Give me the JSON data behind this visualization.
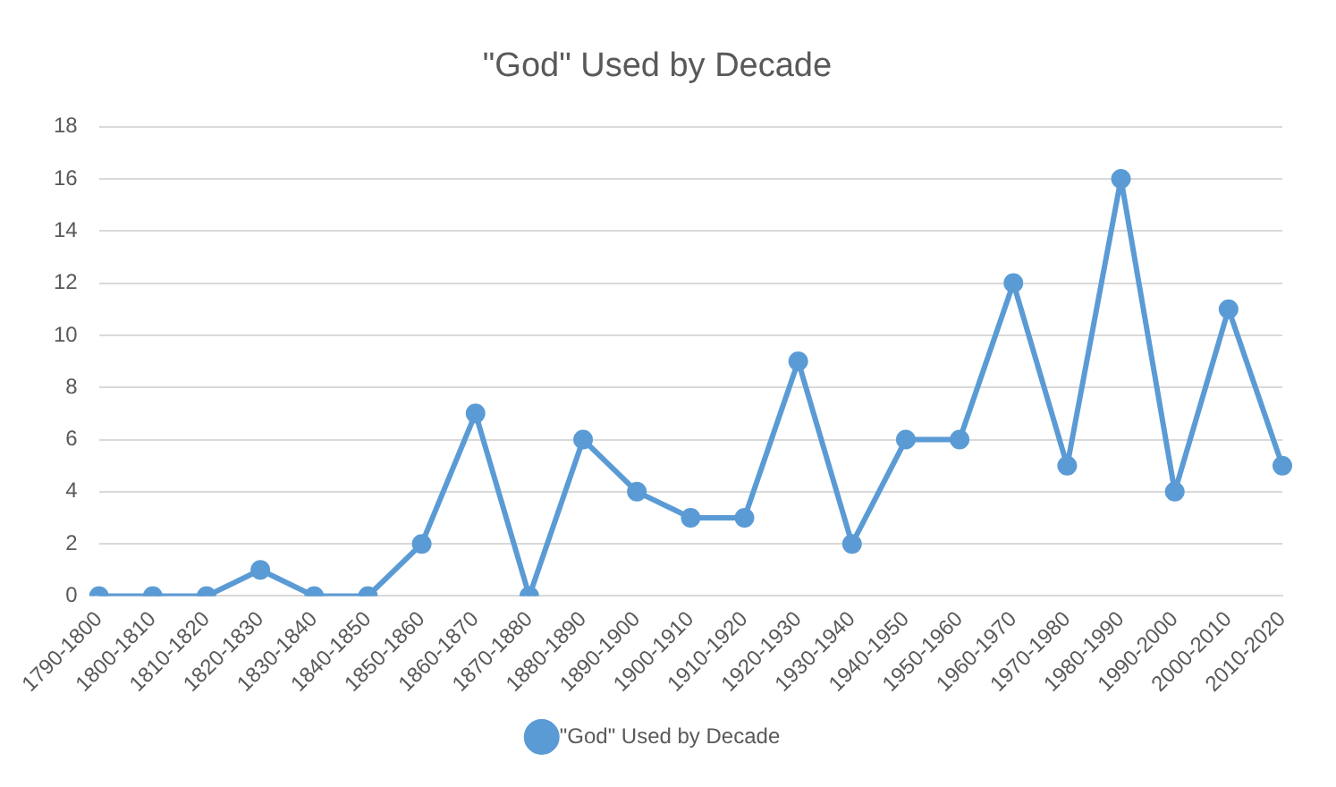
{
  "chart_data": {
    "type": "line",
    "title": "\"God\" Used by Decade",
    "categories": [
      "1790-1800",
      "1800-1810",
      "1810-1820",
      "1820-1830",
      "1830-1840",
      "1840-1850",
      "1850-1860",
      "1860-1870",
      "1870-1880",
      "1880-1890",
      "1890-1900",
      "1900-1910",
      "1910-1920",
      "1920-1930",
      "1930-1940",
      "1940-1950",
      "1950-1960",
      "1960-1970",
      "1970-1980",
      "1980-1990",
      "1990-2000",
      "2000-2010",
      "2010-2020"
    ],
    "series": [
      {
        "name": "\"God\" Used by Decade",
        "color": "#5b9bd5",
        "values": [
          0,
          0,
          0,
          1,
          0,
          0,
          2,
          7,
          0,
          6,
          4,
          3,
          3,
          9,
          2,
          6,
          6,
          12,
          5,
          16,
          4,
          11,
          5
        ]
      }
    ],
    "ylim": [
      0,
      18
    ],
    "yticks": [
      0,
      2,
      4,
      6,
      8,
      10,
      12,
      14,
      16,
      18
    ],
    "grid": "y",
    "legend": "bottom",
    "marker": "circle",
    "line_style": "solid"
  }
}
